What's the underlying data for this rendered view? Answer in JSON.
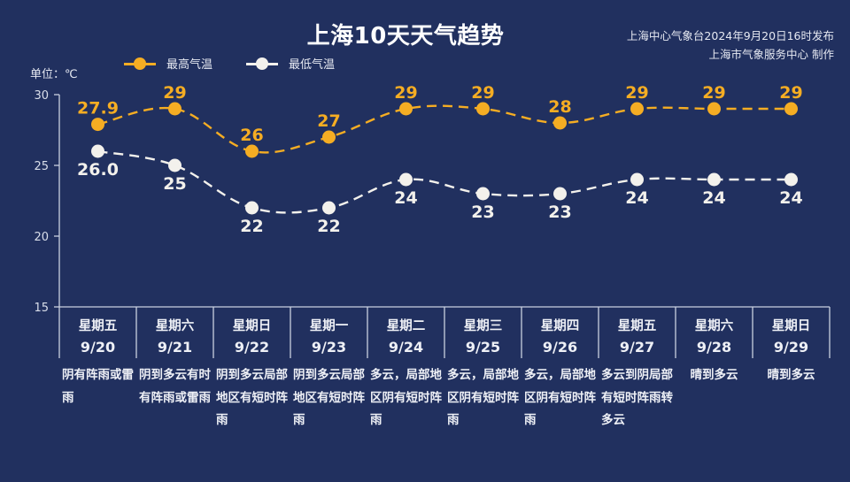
{
  "header": {
    "title": "上海10天天气趋势",
    "source_line1": "上海中心气象台2024年9月20日16时发布",
    "source_line2": "上海市气象服务中心 制作",
    "unit": "单位：℃"
  },
  "legend": [
    {
      "label": "最高气温",
      "color": "#f5ad23",
      "icon": "orange-dot-line-icon"
    },
    {
      "label": "最低气温",
      "color": "#f3f1ec",
      "icon": "white-dot-line-icon"
    }
  ],
  "colors": {
    "background": "#21305f",
    "high": "#f5ad23",
    "low": "#f3f1ec",
    "axis": "#c9d0e0"
  },
  "chart_data": {
    "type": "line",
    "title": "上海10天天气趋势",
    "xlabel": "",
    "ylabel": "单位：℃",
    "ylim": [
      15,
      30
    ],
    "yticks": [
      15,
      20,
      25,
      30
    ],
    "grid": false,
    "legend_position": "top-left",
    "categories": [
      "星期五 9/20",
      "星期六 9/21",
      "星期日 9/22",
      "星期一 9/23",
      "星期二 9/24",
      "星期三 9/25",
      "星期四 9/26",
      "星期五 9/27",
      "星期六 9/28",
      "星期日 9/29"
    ],
    "series": [
      {
        "name": "最高气温",
        "values": [
          27.9,
          29,
          26,
          27,
          29,
          29,
          28,
          29,
          29,
          29
        ],
        "labels": [
          "27.9",
          "29",
          "26",
          "27",
          "29",
          "29",
          "28",
          "29",
          "29",
          "29"
        ],
        "style": "dashed",
        "color": "#f5ad23"
      },
      {
        "name": "最低气温",
        "values": [
          26.0,
          25,
          22,
          22,
          24,
          23,
          23,
          24,
          24,
          24
        ],
        "labels": [
          "26.0",
          "25",
          "22",
          "22",
          "24",
          "23",
          "23",
          "24",
          "24",
          "24"
        ],
        "style": "dashed",
        "color": "#f3f1ec"
      }
    ]
  },
  "days": [
    {
      "weekday": "星期五",
      "date": "9/20",
      "weather": "阴有阵雨或雷雨"
    },
    {
      "weekday": "星期六",
      "date": "9/21",
      "weather": "阴到多云有时有阵雨或雷雨"
    },
    {
      "weekday": "星期日",
      "date": "9/22",
      "weather": "阴到多云局部地区有短时阵雨"
    },
    {
      "weekday": "星期一",
      "date": "9/23",
      "weather": "阴到多云局部地区有短时阵雨"
    },
    {
      "weekday": "星期二",
      "date": "9/24",
      "weather": "多云，局部地区阴有短时阵雨"
    },
    {
      "weekday": "星期三",
      "date": "9/25",
      "weather": "多云，局部地区阴有短时阵雨"
    },
    {
      "weekday": "星期四",
      "date": "9/26",
      "weather": "多云，局部地区阴有短时阵雨"
    },
    {
      "weekday": "星期五",
      "date": "9/27",
      "weather": "多云到阴局部有短时阵雨转多云"
    },
    {
      "weekday": "星期六",
      "date": "9/28",
      "weather": "晴到多云"
    },
    {
      "weekday": "星期日",
      "date": "9/29",
      "weather": "晴到多云"
    }
  ]
}
